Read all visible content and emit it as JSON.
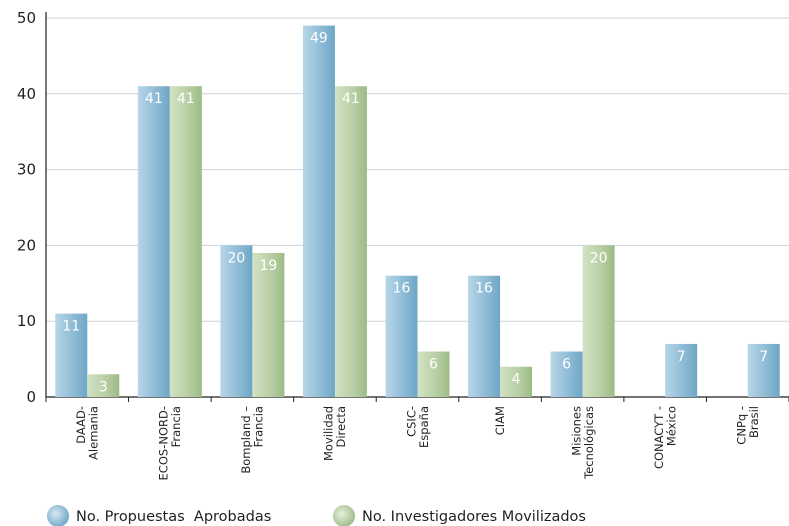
{
  "chart_data": {
    "type": "bar",
    "categories": [
      [
        "DAAD-",
        "Alemania"
      ],
      [
        "ECOS-NORD-",
        "Francia"
      ],
      [
        "Bompland –",
        "Francia"
      ],
      [
        "Movilidad",
        "Directa"
      ],
      [
        "CSIC-",
        "España"
      ],
      [
        "CIAM"
      ],
      [
        "Misiones",
        "Tecnológicas"
      ],
      [
        "CONACYT -",
        "México"
      ],
      [
        "CNPq -",
        "Brasil"
      ]
    ],
    "series": [
      {
        "name": "No. Propuestas  Aprobadas",
        "values": [
          11,
          41,
          20,
          49,
          16,
          16,
          6,
          null,
          null
        ],
        "color": "#8fbcd6"
      },
      {
        "name": "No. Investigadores Movilizados",
        "values": [
          3,
          41,
          19,
          41,
          6,
          4,
          20,
          7,
          7
        ],
        "color": "#b9d0a6",
        "value_colors": [
          null,
          null,
          null,
          null,
          null,
          null,
          null,
          "#8fbcd6",
          "#8fbcd6"
        ]
      }
    ],
    "ylim": [
      0,
      50
    ],
    "yticks": [
      0,
      10,
      20,
      30,
      40,
      50
    ],
    "grid": true,
    "legend_position": "bottom"
  }
}
